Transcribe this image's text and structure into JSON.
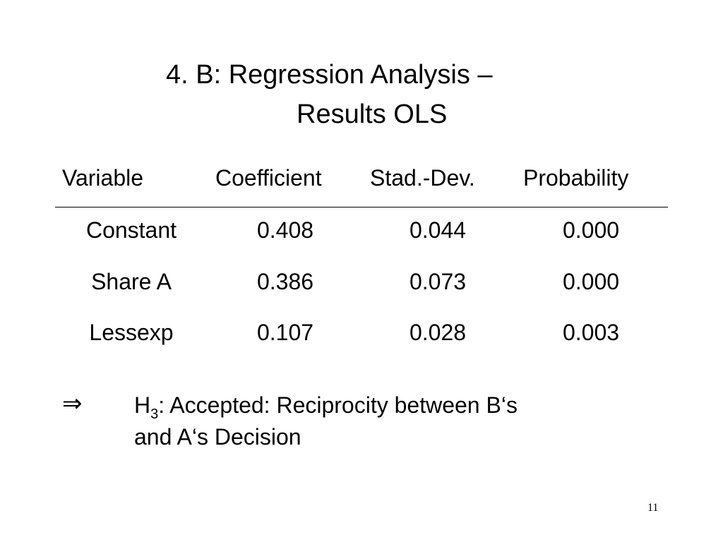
{
  "slide": {
    "title_line1": "4. B: Regression Analysis –",
    "title_line2": "Results OLS",
    "page_number": "11"
  },
  "table": {
    "headers": [
      "Variable",
      "Coefficient",
      "Stad.-Dev.",
      "Probability"
    ],
    "rows": [
      [
        "Constant",
        "0.408",
        "0.044",
        "0.000"
      ],
      [
        "Share A",
        "0.386",
        "0.073",
        "0.000"
      ],
      [
        "Lessexp",
        "0.107",
        "0.028",
        "0.003"
      ]
    ]
  },
  "conclusion": {
    "arrow_symbol": "⇒",
    "hypothesis_letter": "H",
    "hypothesis_subscript": "3",
    "line1_rest": ": Accepted: Reciprocity between B‘s",
    "line2": "and A‘s Decision"
  }
}
